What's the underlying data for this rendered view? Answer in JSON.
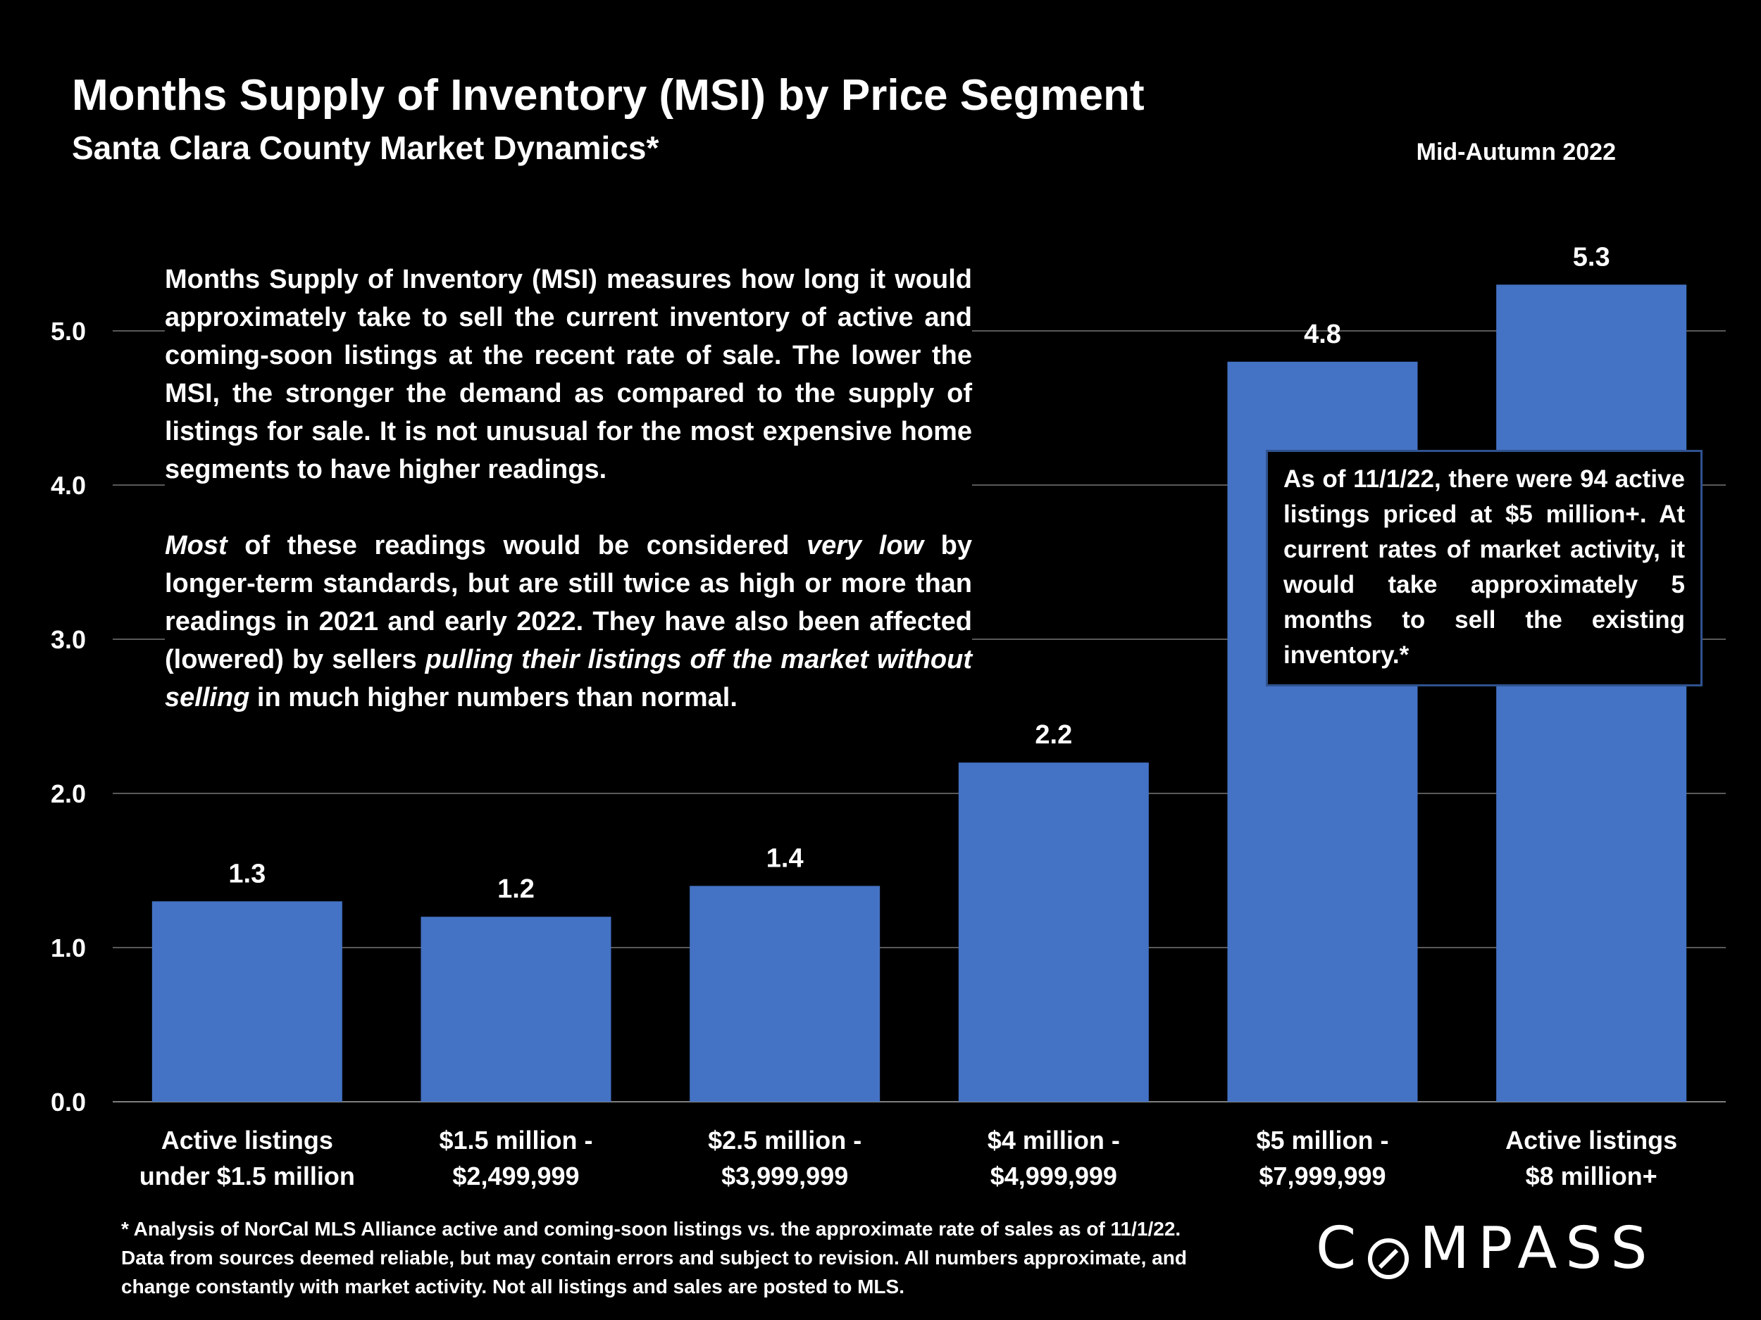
{
  "header": {
    "title": "Months Supply of Inventory (MSI) by Price Segment",
    "subtitle": "Santa Clara County Market Dynamics*",
    "date": "Mid-Autumn 2022"
  },
  "description": {
    "para1": "Months Supply of Inventory (MSI) measures how long it would approximately take to sell the current inventory of active and coming-soon listings at the recent rate of sale. The lower the MSI, the stronger the demand as compared to the supply of listings for sale. It is not unusual for the most expensive home segments to have higher readings.",
    "para2": {
      "t1": "Most",
      "t2": " of these readings would be considered ",
      "t3": "very low",
      "t4": " by longer-term standards, but are still twice as high or more than readings in 2021 and early 2022. They have also been affected (lowered) by sellers ",
      "t5": "pulling their listings off the market without selling",
      "t6": " in much higher numbers than normal."
    }
  },
  "callout": "As of 11/1/22, there were 94 active listings priced at $5 million+. At current rates of market activity, it would take approximately 5 months to sell the existing inventory.*",
  "footnote": "* Analysis of NorCal MLS Alliance active and coming-soon listings vs. the approximate rate of sales as of 11/1/22. Data from sources deemed reliable, but may contain errors and subject to revision. All numbers approximate, and change constantly with market activity. Not all listings and sales are posted to MLS.",
  "logo": {
    "text": "COMPASS"
  },
  "colors": {
    "bar": "#4472c4",
    "background": "#000000",
    "grid": "#595959",
    "text": "#ffffff",
    "callout_border": "#2f528f"
  },
  "chart_data": {
    "type": "bar",
    "categories": [
      [
        "Active listings",
        "under $1.5 million"
      ],
      [
        "$1.5 million -",
        "$2,499,999"
      ],
      [
        "$2.5 million -",
        "$3,999,999"
      ],
      [
        "$4 million -",
        "$4,999,999"
      ],
      [
        "$5 million -",
        "$7,999,999"
      ],
      [
        "Active listings",
        "$8 million+"
      ]
    ],
    "values": [
      1.3,
      1.2,
      1.4,
      2.2,
      4.8,
      5.3
    ],
    "value_labels": [
      "1.3",
      "1.2",
      "1.4",
      "2.2",
      "4.8",
      "5.3"
    ],
    "yticks": [
      "0.0",
      "1.0",
      "2.0",
      "3.0",
      "4.0",
      "5.0"
    ],
    "ylim": [
      0,
      5.5
    ],
    "grid": true,
    "legend": "none"
  }
}
